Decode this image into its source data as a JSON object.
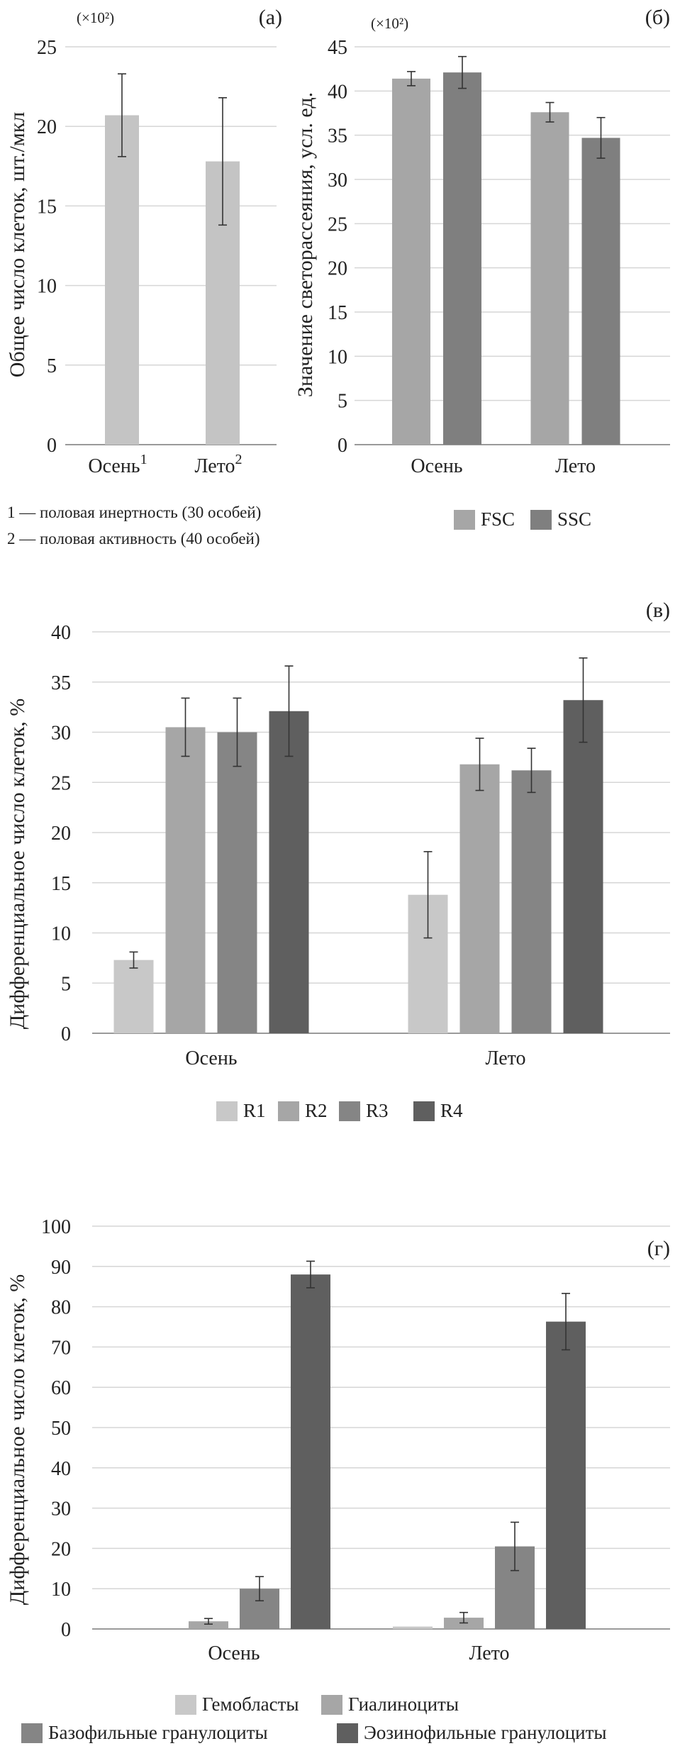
{
  "chart_data": [
    {
      "id": "a",
      "panel_label": "(а)",
      "type": "bar",
      "multiplier": "(×10²)",
      "ylabel": "Общее число клеток, шт./мкл",
      "ylim": [
        0,
        25
      ],
      "yticks": [
        "0",
        "5",
        "10",
        "15",
        "20",
        "25"
      ],
      "categories": [
        "Осень",
        "Лето"
      ],
      "category_sups": [
        "1",
        "2"
      ],
      "series": [
        {
          "values": [
            20.7,
            17.8
          ],
          "errors": [
            2.6,
            4.0
          ],
          "color": "#c4c4c4"
        }
      ],
      "notes": [
        "1 — половая инертность (30 особей)",
        "2 — половая активность (40 особей)"
      ],
      "grid": true
    },
    {
      "id": "b",
      "panel_label": "(б)",
      "type": "bar",
      "multiplier": "(×10²)",
      "ylabel": "Значение светорассеяния, усл. ед.",
      "ylim": [
        0,
        45
      ],
      "yticks": [
        "0",
        "5",
        "10",
        "15",
        "20",
        "25",
        "30",
        "35",
        "40",
        "45"
      ],
      "categories": [
        "Осень",
        "Лето"
      ],
      "series": [
        {
          "name": "FSC",
          "values": [
            41.4,
            37.6
          ],
          "errors": [
            0.8,
            1.1
          ],
          "color": "#a6a6a6"
        },
        {
          "name": "SSC",
          "values": [
            42.1,
            34.7
          ],
          "errors": [
            1.8,
            2.3
          ],
          "color": "#7f7f7f"
        }
      ],
      "legend_position": "bottom",
      "grid": true
    },
    {
      "id": "v",
      "panel_label": "(в)",
      "type": "bar",
      "ylabel": "Дифференциальное число клеток, %",
      "ylim": [
        0,
        40
      ],
      "yticks": [
        "0",
        "5",
        "10",
        "15",
        "20",
        "25",
        "30",
        "35",
        "40"
      ],
      "categories": [
        "Осень",
        "Лето"
      ],
      "series": [
        {
          "name": "R1",
          "values": [
            7.3,
            13.8
          ],
          "errors": [
            0.8,
            4.3
          ],
          "color": "#c8c8c8"
        },
        {
          "name": "R2",
          "values": [
            30.5,
            26.8
          ],
          "errors": [
            2.9,
            2.6
          ],
          "color": "#a6a6a6"
        },
        {
          "name": "R3",
          "values": [
            30.0,
            26.2
          ],
          "errors": [
            3.4,
            2.2
          ],
          "color": "#858585"
        },
        {
          "name": "R4",
          "values": [
            32.1,
            33.2
          ],
          "errors": [
            4.5,
            4.2
          ],
          "color": "#5f5f5f"
        }
      ],
      "legend_position": "bottom",
      "grid": true
    },
    {
      "id": "g",
      "panel_label": "(г)",
      "type": "bar",
      "ylabel": "Дифференциальное число клеток, %",
      "ylim": [
        0,
        100
      ],
      "yticks": [
        "0",
        "10",
        "20",
        "30",
        "40",
        "50",
        "60",
        "70",
        "80",
        "90",
        "100"
      ],
      "categories": [
        "Осень",
        "Лето"
      ],
      "series": [
        {
          "name": "Гемобласты",
          "values": [
            0,
            0.6
          ],
          "errors": [
            0,
            0
          ],
          "color": "#c8c8c8"
        },
        {
          "name": "Гиалиноциты",
          "values": [
            1.9,
            2.8
          ],
          "errors": [
            0.7,
            1.3
          ],
          "color": "#a6a6a6"
        },
        {
          "name": "Базофильные гранулоциты",
          "values": [
            10.0,
            20.5
          ],
          "errors": [
            3.0,
            6.0
          ],
          "color": "#858585"
        },
        {
          "name": "Эозинофильные гранулоциты",
          "values": [
            88.0,
            76.3
          ],
          "errors": [
            3.3,
            7.0
          ],
          "color": "#5f5f5f"
        }
      ],
      "legend_position": "bottom",
      "grid": true
    }
  ]
}
